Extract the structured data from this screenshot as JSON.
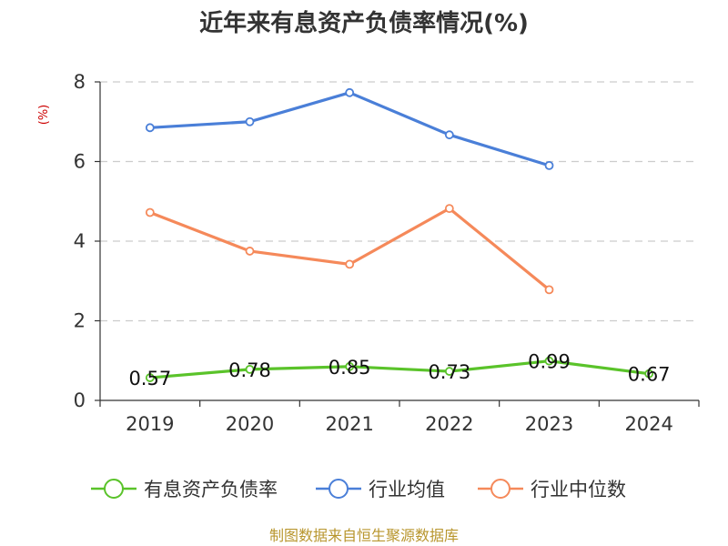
{
  "chart_data": {
    "type": "line",
    "title": "近年来有息资产负债率情况(%)",
    "ylabel": "(%)",
    "xlabel": "",
    "categories": [
      "2019",
      "2020",
      "2021",
      "2022",
      "2023",
      "2024"
    ],
    "ylim": [
      0,
      8
    ],
    "yticks": [
      0,
      2,
      4,
      6,
      8
    ],
    "grid": true,
    "legend_position": "bottom",
    "series": [
      {
        "name": "有息资产负债率",
        "color": "#5ac32a",
        "values": [
          0.57,
          0.78,
          0.85,
          0.73,
          0.99,
          0.67
        ],
        "labels": [
          "0.57",
          "0.78",
          "0.85",
          "0.73",
          "0.99",
          "0.67"
        ],
        "show_labels": true
      },
      {
        "name": "行业均值",
        "color": "#4a7fd8",
        "values": [
          6.85,
          7.0,
          7.73,
          6.67,
          5.9,
          null
        ],
        "show_labels": false
      },
      {
        "name": "行业中位数",
        "color": "#f5895a",
        "values": [
          4.72,
          3.75,
          3.42,
          4.82,
          2.78,
          null
        ],
        "show_labels": false
      }
    ],
    "source": "制图数据来自恒生聚源数据库"
  }
}
